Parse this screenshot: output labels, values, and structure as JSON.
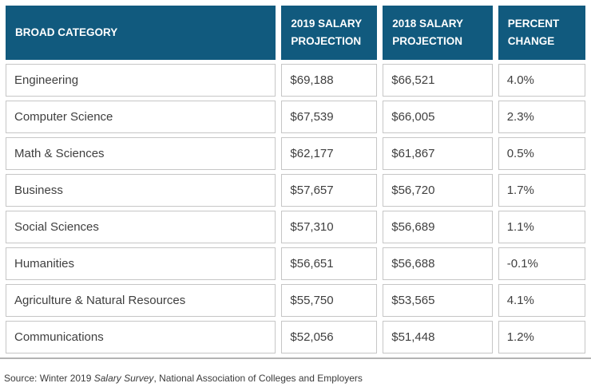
{
  "colors": {
    "header_bg": "#115a7e",
    "header_text": "#ffffff",
    "body_text": "#3f3f3f",
    "cell_border": "#c6c6c6",
    "table_bottom_rule": "#b3b3b3"
  },
  "table": {
    "columns": [
      {
        "label": "BROAD CATEGORY"
      },
      {
        "label": "2019 SALARY PROJECTION"
      },
      {
        "label": "2018 SALARY PROJECTION"
      },
      {
        "label": "PERCENT CHANGE"
      }
    ],
    "rows": [
      {
        "category": "Engineering",
        "salary_2019": "$69,188",
        "salary_2018": "$66,521",
        "percent_change": "4.0%"
      },
      {
        "category": "Computer Science",
        "salary_2019": "$67,539",
        "salary_2018": "$66,005",
        "percent_change": "2.3%"
      },
      {
        "category": "Math & Sciences",
        "salary_2019": "$62,177",
        "salary_2018": "$61,867",
        "percent_change": "0.5%"
      },
      {
        "category": "Business",
        "salary_2019": "$57,657",
        "salary_2018": "$56,720",
        "percent_change": "1.7%"
      },
      {
        "category": "Social Sciences",
        "salary_2019": "$57,310",
        "salary_2018": "$56,689",
        "percent_change": "1.1%"
      },
      {
        "category": "Humanities",
        "salary_2019": "$56,651",
        "salary_2018": "$56,688",
        "percent_change": "-0.1%"
      },
      {
        "category": "Agriculture & Natural Resources",
        "salary_2019": "$55,750",
        "salary_2018": "$53,565",
        "percent_change": "4.1%"
      },
      {
        "category": "Communications",
        "salary_2019": "$52,056",
        "salary_2018": "$51,448",
        "percent_change": "1.2%"
      }
    ]
  },
  "footer": {
    "prefix": "Source: Winter 2019 ",
    "source_title": "Salary Survey",
    "suffix": ", National Association of Colleges and Employers"
  },
  "chart_data": {
    "type": "table",
    "title": "Salary projections by broad category",
    "columns": [
      "BROAD CATEGORY",
      "2019 SALARY PROJECTION",
      "2018 SALARY PROJECTION",
      "PERCENT CHANGE"
    ],
    "categories": [
      "Engineering",
      "Computer Science",
      "Math & Sciences",
      "Business",
      "Social Sciences",
      "Humanities",
      "Agriculture & Natural Resources",
      "Communications"
    ],
    "series": [
      {
        "name": "2019 Salary Projection (USD)",
        "values": [
          69188,
          67539,
          62177,
          57657,
          57310,
          56651,
          55750,
          52056
        ]
      },
      {
        "name": "2018 Salary Projection (USD)",
        "values": [
          66521,
          66005,
          61867,
          56720,
          56689,
          56688,
          53565,
          51448
        ]
      },
      {
        "name": "Percent Change (%)",
        "values": [
          4.0,
          2.3,
          0.5,
          1.7,
          1.1,
          -0.1,
          4.1,
          1.2
        ]
      }
    ],
    "source": "Source: Winter 2019 Salary Survey, National Association of Colleges and Employers"
  }
}
